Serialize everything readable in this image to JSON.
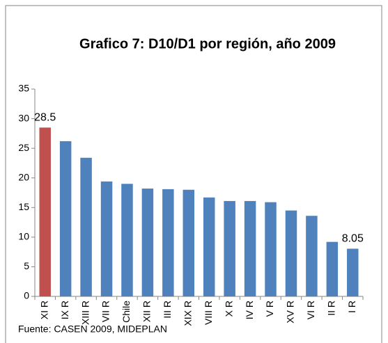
{
  "chart_data": {
    "type": "bar",
    "title": "Grafico 7: D10/D1 por región, año 2009",
    "categories": [
      "XI R",
      "IX R",
      "XIII R",
      "VII R",
      "Chile",
      "XII R",
      "III R",
      "XIX R",
      "VIII R",
      "X R",
      "IV R",
      "V R",
      "XV R",
      "VI R",
      "II R",
      "I R"
    ],
    "values": [
      28.5,
      26.2,
      23.4,
      19.4,
      19.0,
      18.2,
      18.1,
      18.0,
      16.7,
      16.1,
      16.1,
      15.9,
      14.5,
      13.6,
      9.2,
      8.05
    ],
    "value_labels": [
      "28.5",
      null,
      null,
      null,
      null,
      null,
      null,
      null,
      null,
      null,
      null,
      null,
      null,
      null,
      null,
      "8.05"
    ],
    "colors": [
      "#c0504d",
      "#4f81bd",
      "#4f81bd",
      "#4f81bd",
      "#4f81bd",
      "#4f81bd",
      "#4f81bd",
      "#4f81bd",
      "#4f81bd",
      "#4f81bd",
      "#4f81bd",
      "#4f81bd",
      "#4f81bd",
      "#4f81bd",
      "#4f81bd",
      "#4f81bd"
    ],
    "ylim": [
      0,
      35
    ],
    "yticks": [
      0,
      5,
      10,
      15,
      20,
      25,
      30,
      35
    ],
    "grid": false,
    "footnote": "Fuente: CASEN 2009, MIDEPLAN"
  }
}
